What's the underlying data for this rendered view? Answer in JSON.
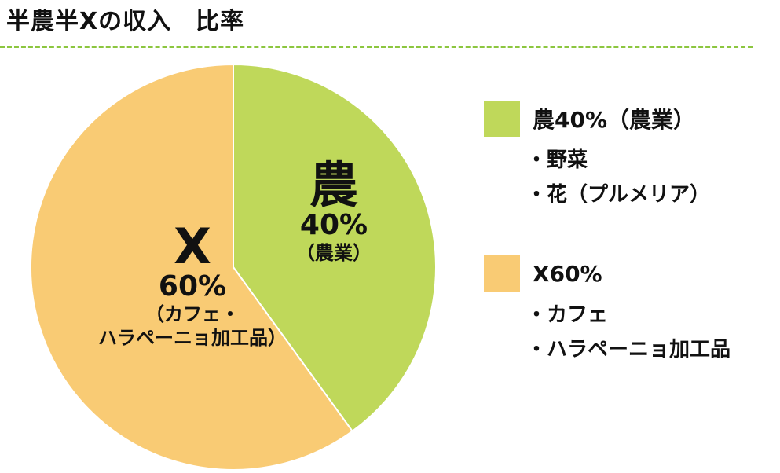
{
  "title": "半農半Xの収入　比率",
  "chart_data": {
    "type": "pie",
    "start_angle_deg": 0,
    "direction": "clockwise",
    "slices": [
      {
        "key": "noh",
        "value": 40,
        "color": "#bfd85a",
        "label_main": "農",
        "label_pct": "40%",
        "label_sub": "（農業）"
      },
      {
        "key": "x",
        "value": 60,
        "color": "#f9cb74",
        "label_main": "X",
        "label_pct": "60%",
        "label_sub1": "（カフェ・",
        "label_sub2": "ハラペーニョ加工品）"
      }
    ],
    "legend": [
      {
        "title": "農40%（農業）",
        "color": "#bfd85a",
        "items": [
          "野菜",
          "花（プルメリア）"
        ]
      },
      {
        "title": "X60%",
        "color": "#f9cb74",
        "items": [
          "カフェ",
          "ハラペーニョ加工品"
        ]
      }
    ]
  }
}
